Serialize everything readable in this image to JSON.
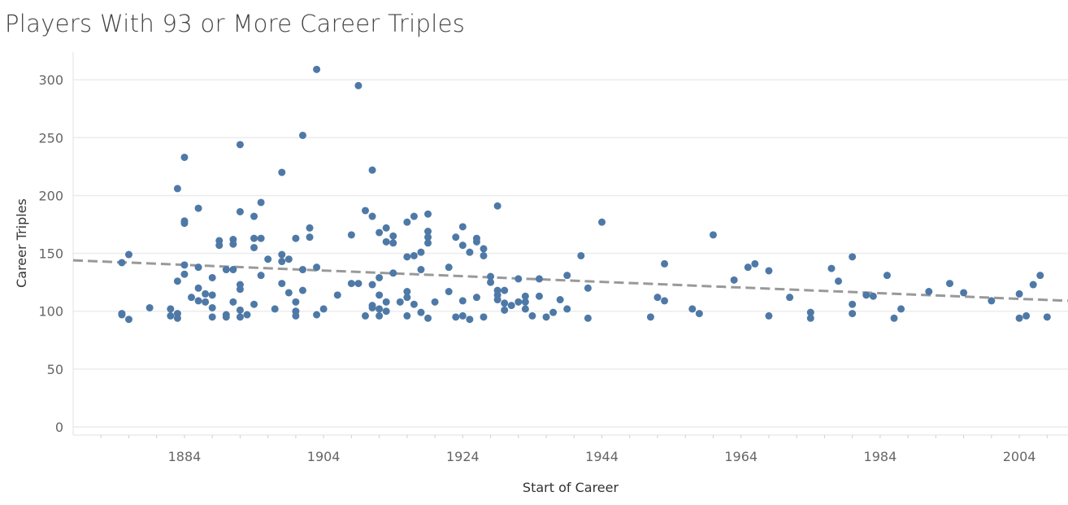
{
  "chart_data": {
    "type": "scatter",
    "title": "Players With 93 or More Career Triples",
    "xlabel": "Start of Career",
    "ylabel": "Career Triples",
    "xlim": [
      1868,
      2011
    ],
    "ylim": [
      -7,
      324
    ],
    "x_ticks": [
      1884,
      1904,
      1924,
      1944,
      1964,
      1984,
      2004
    ],
    "y_ticks": [
      0,
      50,
      100,
      150,
      200,
      250,
      300
    ],
    "grid": "horizontal",
    "trend_line": {
      "style": "dashed",
      "color": "#999999",
      "start": [
        1868,
        144
      ],
      "end": [
        2011,
        109
      ]
    },
    "point_color": "#4e79a7",
    "points": [
      [
        1875,
        142
      ],
      [
        1875,
        98
      ],
      [
        1875,
        97
      ],
      [
        1876,
        149
      ],
      [
        1876,
        93
      ],
      [
        1879,
        103
      ],
      [
        1882,
        102
      ],
      [
        1882,
        96
      ],
      [
        1883,
        206
      ],
      [
        1883,
        126
      ],
      [
        1883,
        98
      ],
      [
        1883,
        94
      ],
      [
        1884,
        233
      ],
      [
        1884,
        178
      ],
      [
        1884,
        176
      ],
      [
        1884,
        140
      ],
      [
        1884,
        132
      ],
      [
        1885,
        112
      ],
      [
        1886,
        189
      ],
      [
        1886,
        138
      ],
      [
        1886,
        120
      ],
      [
        1886,
        109
      ],
      [
        1887,
        115
      ],
      [
        1887,
        108
      ],
      [
        1888,
        129
      ],
      [
        1888,
        114
      ],
      [
        1888,
        103
      ],
      [
        1888,
        95
      ],
      [
        1889,
        161
      ],
      [
        1889,
        157
      ],
      [
        1890,
        136
      ],
      [
        1890,
        97
      ],
      [
        1890,
        95
      ],
      [
        1891,
        162
      ],
      [
        1891,
        158
      ],
      [
        1891,
        136
      ],
      [
        1891,
        108
      ],
      [
        1892,
        244
      ],
      [
        1892,
        186
      ],
      [
        1892,
        123
      ],
      [
        1892,
        119
      ],
      [
        1892,
        101
      ],
      [
        1892,
        95
      ],
      [
        1893,
        97
      ],
      [
        1894,
        182
      ],
      [
        1894,
        163
      ],
      [
        1894,
        155
      ],
      [
        1894,
        106
      ],
      [
        1895,
        194
      ],
      [
        1895,
        163
      ],
      [
        1895,
        131
      ],
      [
        1896,
        145
      ],
      [
        1897,
        102
      ],
      [
        1898,
        220
      ],
      [
        1898,
        149
      ],
      [
        1898,
        143
      ],
      [
        1898,
        124
      ],
      [
        1899,
        145
      ],
      [
        1899,
        116
      ],
      [
        1900,
        163
      ],
      [
        1900,
        108
      ],
      [
        1900,
        100
      ],
      [
        1900,
        96
      ],
      [
        1901,
        252
      ],
      [
        1901,
        136
      ],
      [
        1901,
        118
      ],
      [
        1902,
        172
      ],
      [
        1902,
        164
      ],
      [
        1903,
        309
      ],
      [
        1903,
        138
      ],
      [
        1903,
        97
      ],
      [
        1904,
        102
      ],
      [
        1906,
        114
      ],
      [
        1908,
        166
      ],
      [
        1908,
        124
      ],
      [
        1909,
        295
      ],
      [
        1909,
        124
      ],
      [
        1910,
        187
      ],
      [
        1910,
        96
      ],
      [
        1911,
        222
      ],
      [
        1911,
        182
      ],
      [
        1911,
        123
      ],
      [
        1911,
        105
      ],
      [
        1911,
        103
      ],
      [
        1912,
        168
      ],
      [
        1912,
        129
      ],
      [
        1912,
        114
      ],
      [
        1912,
        102
      ],
      [
        1912,
        96
      ],
      [
        1913,
        172
      ],
      [
        1913,
        160
      ],
      [
        1913,
        108
      ],
      [
        1913,
        100
      ],
      [
        1914,
        165
      ],
      [
        1914,
        159
      ],
      [
        1914,
        133
      ],
      [
        1915,
        108
      ],
      [
        1916,
        177
      ],
      [
        1916,
        147
      ],
      [
        1916,
        117
      ],
      [
        1916,
        112
      ],
      [
        1916,
        96
      ],
      [
        1917,
        182
      ],
      [
        1917,
        148
      ],
      [
        1917,
        106
      ],
      [
        1918,
        151
      ],
      [
        1918,
        136
      ],
      [
        1918,
        99
      ],
      [
        1919,
        184
      ],
      [
        1919,
        169
      ],
      [
        1919,
        164
      ],
      [
        1919,
        159
      ],
      [
        1919,
        94
      ],
      [
        1920,
        108
      ],
      [
        1922,
        138
      ],
      [
        1922,
        117
      ],
      [
        1923,
        164
      ],
      [
        1923,
        95
      ],
      [
        1924,
        173
      ],
      [
        1924,
        157
      ],
      [
        1924,
        109
      ],
      [
        1924,
        96
      ],
      [
        1925,
        151
      ],
      [
        1925,
        93
      ],
      [
        1926,
        163
      ],
      [
        1926,
        160
      ],
      [
        1926,
        112
      ],
      [
        1927,
        154
      ],
      [
        1927,
        148
      ],
      [
        1927,
        95
      ],
      [
        1928,
        130
      ],
      [
        1928,
        125
      ],
      [
        1929,
        191
      ],
      [
        1929,
        118
      ],
      [
        1929,
        114
      ],
      [
        1929,
        110
      ],
      [
        1930,
        118
      ],
      [
        1930,
        107
      ],
      [
        1930,
        101
      ],
      [
        1931,
        105
      ],
      [
        1932,
        128
      ],
      [
        1932,
        108
      ],
      [
        1933,
        113
      ],
      [
        1933,
        108
      ],
      [
        1933,
        102
      ],
      [
        1934,
        96
      ],
      [
        1935,
        128
      ],
      [
        1935,
        113
      ],
      [
        1936,
        95
      ],
      [
        1937,
        99
      ],
      [
        1938,
        110
      ],
      [
        1939,
        131
      ],
      [
        1939,
        102
      ],
      [
        1941,
        148
      ],
      [
        1942,
        120
      ],
      [
        1942,
        94
      ],
      [
        1944,
        177
      ],
      [
        1951,
        95
      ],
      [
        1952,
        112
      ],
      [
        1953,
        141
      ],
      [
        1953,
        109
      ],
      [
        1957,
        102
      ],
      [
        1958,
        98
      ],
      [
        1960,
        166
      ],
      [
        1963,
        127
      ],
      [
        1965,
        138
      ],
      [
        1966,
        141
      ],
      [
        1968,
        135
      ],
      [
        1968,
        96
      ],
      [
        1971,
        112
      ],
      [
        1974,
        99
      ],
      [
        1974,
        94
      ],
      [
        1977,
        137
      ],
      [
        1978,
        126
      ],
      [
        1980,
        147
      ],
      [
        1980,
        106
      ],
      [
        1980,
        98
      ],
      [
        1982,
        114
      ],
      [
        1983,
        113
      ],
      [
        1985,
        131
      ],
      [
        1986,
        94
      ],
      [
        1987,
        102
      ],
      [
        1991,
        117
      ],
      [
        1994,
        124
      ],
      [
        1996,
        116
      ],
      [
        2000,
        109
      ],
      [
        2004,
        115
      ],
      [
        2004,
        94
      ],
      [
        2005,
        96
      ],
      [
        2006,
        123
      ],
      [
        2007,
        131
      ],
      [
        2008,
        95
      ]
    ]
  }
}
